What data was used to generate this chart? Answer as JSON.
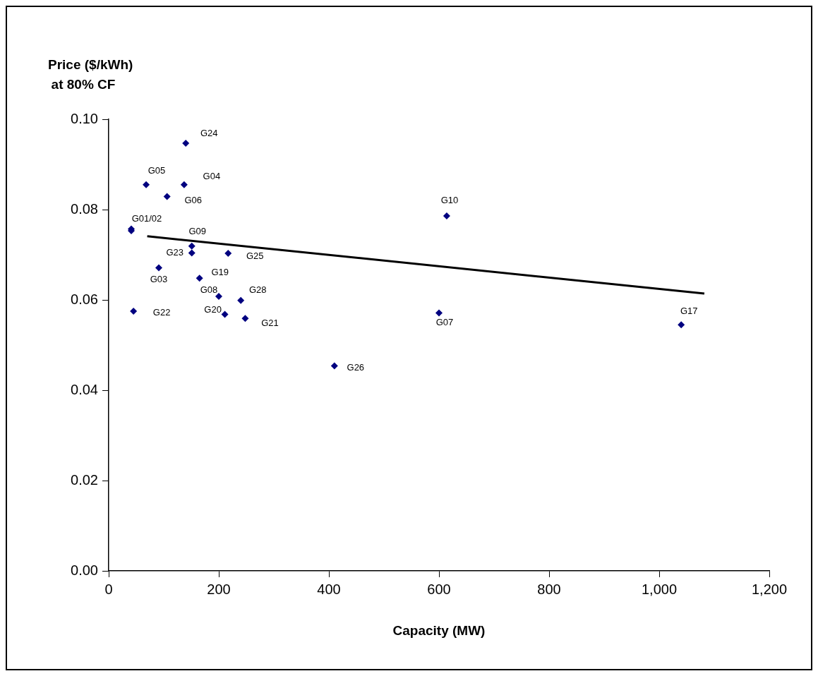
{
  "chart_data": {
    "type": "scatter",
    "xlabel": "Capacity (MW)",
    "ylabel": "Price ($/kWh)\nat 80% CF",
    "xlim": [
      0,
      1200
    ],
    "xticks": [
      0,
      200,
      400,
      600,
      800,
      {
        "value": 1000,
        "label": "1,000"
      },
      {
        "value": 1200,
        "label": "1,200"
      }
    ],
    "ylim": [
      0,
      0.1
    ],
    "yticks": [
      {
        "value": 0,
        "label": "0.00"
      },
      {
        "value": 0.02,
        "label": "0.02"
      },
      {
        "value": 0.04,
        "label": "0.04"
      },
      {
        "value": 0.06,
        "label": "0.06"
      },
      {
        "value": 0.08,
        "label": "0.08"
      },
      {
        "value": 0.1,
        "label": "0.10"
      }
    ],
    "grid": false,
    "legend": false,
    "series": [
      {
        "type": "scatter",
        "color": "#000080",
        "marker": "diamond",
        "x": [
          140,
          68,
          137,
          106,
          41,
          41,
          151,
          151,
          217,
          91,
          165,
          200,
          240,
          45,
          211,
          248,
          614,
          600,
          410,
          1040
        ],
        "values": [
          0.0947,
          0.0855,
          0.0855,
          0.0829,
          0.0757,
          0.0753,
          0.0719,
          0.0704,
          0.0703,
          0.0671,
          0.0648,
          0.0608,
          0.0599,
          0.0575,
          0.0568,
          0.0559,
          0.0786,
          0.0571,
          0.0454,
          0.0545
        ]
      },
      {
        "type": "line",
        "color": "#000000",
        "marker": "none",
        "line_style": "solid",
        "x": [
          70,
          1082
        ],
        "values": [
          0.0741,
          0.0614
        ]
      }
    ],
    "annotations": [
      {
        "text": "G24",
        "x": 140,
        "y": 0.0947
      },
      {
        "text": "G05",
        "x": 68,
        "y": 0.0855
      },
      {
        "text": "G04",
        "x": 137,
        "y": 0.0855
      },
      {
        "text": "G06",
        "x": 106,
        "y": 0.0829
      },
      {
        "text": "G01/02",
        "x": 41,
        "y": 0.0757
      },
      {
        "text": "G09",
        "x": 151,
        "y": 0.0719
      },
      {
        "text": "G23",
        "x": 151,
        "y": 0.0704
      },
      {
        "text": "G25",
        "x": 217,
        "y": 0.0703
      },
      {
        "text": "G03",
        "x": 91,
        "y": 0.0671
      },
      {
        "text": "G19",
        "x": 165,
        "y": 0.0648
      },
      {
        "text": "G08",
        "x": 200,
        "y": 0.0608
      },
      {
        "text": "G28",
        "x": 240,
        "y": 0.0599
      },
      {
        "text": "G22",
        "x": 45,
        "y": 0.0575
      },
      {
        "text": "G20",
        "x": 211,
        "y": 0.0568
      },
      {
        "text": "G21",
        "x": 248,
        "y": 0.0559
      },
      {
        "text": "G10",
        "x": 614,
        "y": 0.0786
      },
      {
        "text": "G07",
        "x": 600,
        "y": 0.0571
      },
      {
        "text": "G26",
        "x": 410,
        "y": 0.0454
      },
      {
        "text": "G17",
        "x": 1040,
        "y": 0.0545
      }
    ]
  }
}
